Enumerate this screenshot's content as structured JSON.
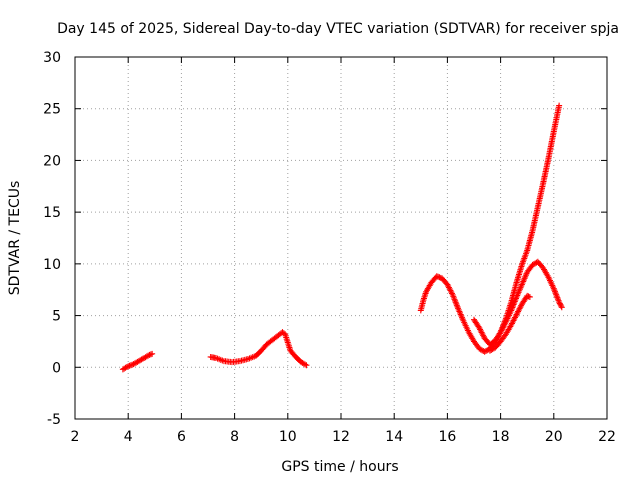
{
  "chart_data": {
    "type": "scatter",
    "title": "Day 145 of 2025, Sidereal Day-to-day VTEC variation (SDTVAR) for receiver spja",
    "xlabel": "GPS time / hours",
    "ylabel": "SDTVAR / TECUs",
    "xlim": [
      2,
      22
    ],
    "ylim": [
      -5,
      30
    ],
    "xticks": [
      2,
      4,
      6,
      8,
      10,
      12,
      14,
      16,
      18,
      20,
      22
    ],
    "yticks": [
      -5,
      0,
      5,
      10,
      15,
      20,
      25,
      30
    ],
    "grid": true,
    "marker": "+",
    "color": "#ff0000",
    "segments": [
      {
        "name": "segment-1",
        "points": [
          [
            3.8,
            -0.2
          ],
          [
            4.0,
            0.1
          ],
          [
            4.2,
            0.3
          ],
          [
            4.4,
            0.6
          ],
          [
            4.6,
            0.9
          ],
          [
            4.8,
            1.2
          ],
          [
            4.9,
            1.3
          ]
        ]
      },
      {
        "name": "segment-2",
        "points": [
          [
            7.1,
            1.0
          ],
          [
            7.3,
            0.9
          ],
          [
            7.6,
            0.6
          ],
          [
            7.9,
            0.5
          ],
          [
            8.2,
            0.6
          ],
          [
            8.5,
            0.8
          ],
          [
            8.8,
            1.1
          ],
          [
            9.0,
            1.6
          ],
          [
            9.2,
            2.2
          ],
          [
            9.4,
            2.6
          ],
          [
            9.6,
            3.0
          ],
          [
            9.8,
            3.4
          ],
          [
            9.9,
            3.2
          ],
          [
            10.0,
            2.4
          ],
          [
            10.1,
            1.6
          ],
          [
            10.3,
            1.0
          ],
          [
            10.5,
            0.5
          ],
          [
            10.7,
            0.2
          ]
        ]
      },
      {
        "name": "segment-3",
        "points": [
          [
            15.0,
            5.5
          ],
          [
            15.1,
            6.5
          ],
          [
            15.2,
            7.3
          ],
          [
            15.4,
            8.2
          ],
          [
            15.6,
            8.8
          ],
          [
            15.8,
            8.6
          ],
          [
            16.0,
            8.0
          ],
          [
            16.2,
            7.0
          ],
          [
            16.4,
            5.7
          ],
          [
            16.6,
            4.5
          ],
          [
            16.8,
            3.4
          ],
          [
            17.0,
            2.5
          ],
          [
            17.2,
            1.8
          ],
          [
            17.4,
            1.5
          ],
          [
            17.6,
            1.8
          ],
          [
            17.8,
            2.4
          ],
          [
            18.0,
            3.4
          ],
          [
            18.2,
            4.7
          ],
          [
            18.4,
            6.3
          ],
          [
            18.6,
            8.2
          ],
          [
            18.8,
            9.9
          ],
          [
            19.0,
            11.3
          ],
          [
            19.2,
            13.2
          ],
          [
            19.4,
            15.5
          ],
          [
            19.6,
            17.8
          ],
          [
            19.8,
            20.2
          ],
          [
            20.0,
            22.8
          ],
          [
            20.2,
            25.3
          ]
        ]
      },
      {
        "name": "segment-4",
        "points": [
          [
            17.0,
            4.6
          ],
          [
            17.2,
            3.8
          ],
          [
            17.4,
            2.8
          ],
          [
            17.6,
            2.2
          ],
          [
            17.8,
            2.6
          ],
          [
            18.0,
            3.4
          ],
          [
            18.2,
            4.4
          ],
          [
            18.4,
            5.5
          ],
          [
            18.6,
            6.8
          ],
          [
            18.8,
            8.0
          ],
          [
            19.0,
            9.2
          ],
          [
            19.2,
            9.9
          ],
          [
            19.4,
            10.2
          ],
          [
            19.6,
            9.6
          ],
          [
            19.8,
            8.7
          ],
          [
            20.0,
            7.6
          ],
          [
            20.2,
            6.3
          ],
          [
            20.3,
            5.8
          ]
        ]
      },
      {
        "name": "segment-5",
        "points": [
          [
            17.6,
            1.6
          ],
          [
            17.8,
            1.9
          ],
          [
            18.0,
            2.5
          ],
          [
            18.2,
            3.2
          ],
          [
            18.4,
            4.1
          ],
          [
            18.6,
            5.1
          ],
          [
            18.8,
            6.1
          ],
          [
            19.0,
            6.9
          ],
          [
            19.1,
            6.8
          ]
        ]
      }
    ]
  }
}
